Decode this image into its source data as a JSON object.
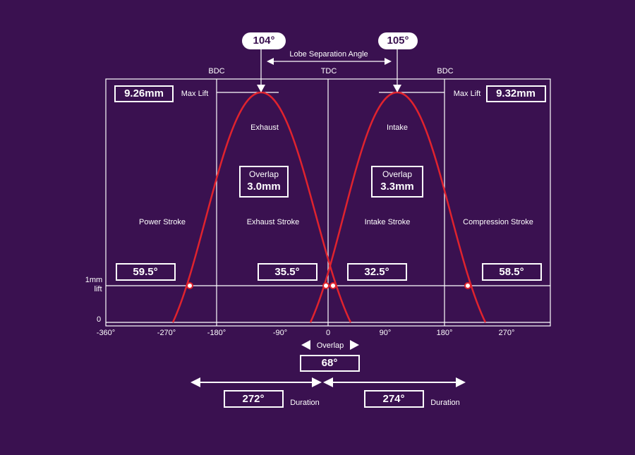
{
  "top": {
    "exhaust_angle": "104°",
    "intake_angle": "105°",
    "lobe_separation_label": "Lobe Separation Angle"
  },
  "positions": [
    "BDC",
    "TDC",
    "BDC"
  ],
  "max_lift": {
    "exhaust": "9.26mm",
    "label_left": "Max Lift",
    "label_right": "Max Lift",
    "intake": "9.32mm"
  },
  "lobes": [
    "Exhaust",
    "Intake"
  ],
  "overlap_lift": [
    {
      "label": "Overlap",
      "value": "3.0mm"
    },
    {
      "label": "Overlap",
      "value": "3.3mm"
    }
  ],
  "strokes": [
    "Power Stroke",
    "Exhaust Stroke",
    "Intake Stroke",
    "Compression Stroke"
  ],
  "event_angles": [
    "59.5°",
    "35.5°",
    "32.5°",
    "58.5°"
  ],
  "y_labels": [
    "1mm",
    "lift",
    "0"
  ],
  "x_ticks": [
    "-360°",
    "-270°",
    "-180°",
    "-90°",
    "0",
    "90°",
    "180°",
    "270°"
  ],
  "overlap": {
    "label": "Overlap",
    "value": "68°"
  },
  "durations": [
    {
      "value": "272°",
      "label": "Duration"
    },
    {
      "value": "274°",
      "label": "Duration"
    }
  ]
}
